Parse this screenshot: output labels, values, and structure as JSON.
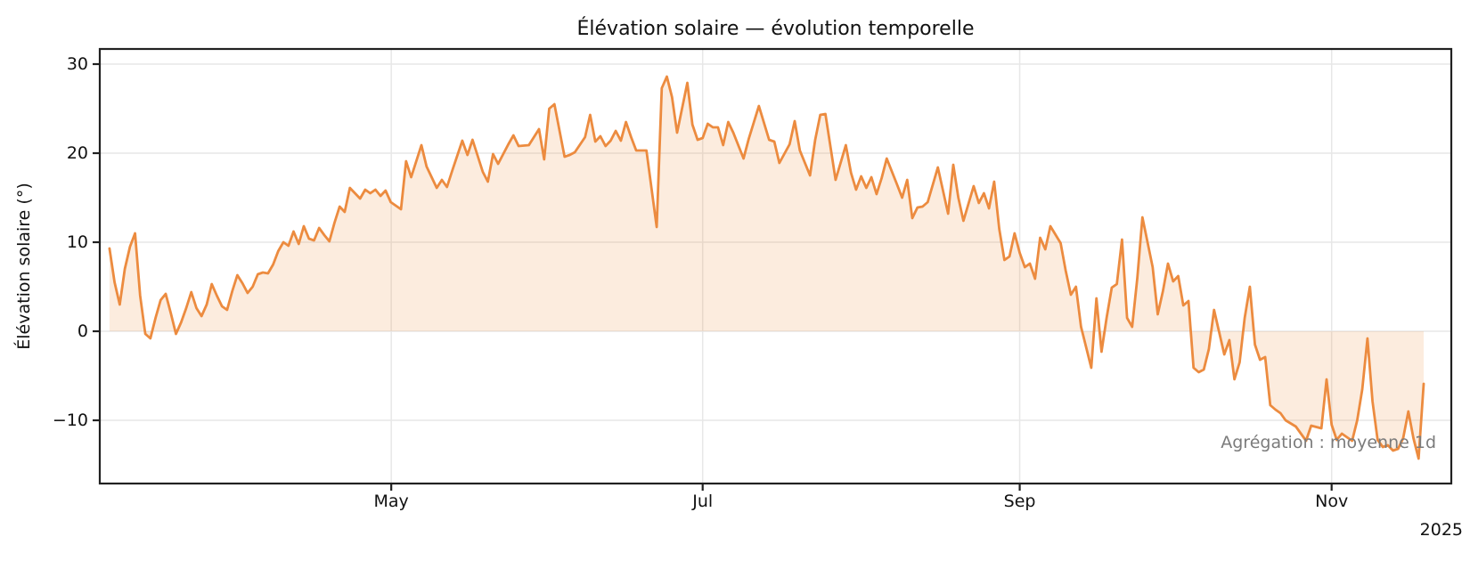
{
  "title": "Élévation solaire — évolution temporelle",
  "ylabel": "Élévation solaire (°)",
  "xlabel": "",
  "annotation": "Agrégation : moyenne 1d",
  "year_label": "2025",
  "colors": {
    "line": "#ec8b3f",
    "fill": "#ee8833",
    "fill_opacity": 0.16,
    "grid": "#e7e7e7",
    "spine": "#212121",
    "text": "#111111",
    "muted_text": "#7b7b7b",
    "background": "#ffffff"
  },
  "chart_data": {
    "type": "line",
    "title": "Élévation solaire — évolution temporelle",
    "xlabel": "",
    "ylabel": "Élévation solaire (°)",
    "grid": true,
    "legend": false,
    "fill_to_zero": true,
    "x_unit": "day index of daily-mean samples (moyenne 1d); ticks mark month starts of 2025",
    "xlim_days": [
      -1.9,
      262.4
    ],
    "ylim": [
      -17.1,
      31.7
    ],
    "y_ticks": [
      -10,
      0,
      10,
      20,
      30
    ],
    "x_ticks": [
      {
        "label": "May",
        "day": 55.1
      },
      {
        "label": "Jul",
        "day": 116.0
      },
      {
        "label": "Sep",
        "day": 178.0
      },
      {
        "label": "Nov",
        "day": 239.0
      }
    ],
    "annotation": "Agrégation : moyenne 1d",
    "year_label": "2025",
    "series": [
      {
        "name": "Élévation solaire (°), moyenne 1d",
        "points": [
          [
            0,
            9.3
          ],
          [
            1,
            5.5
          ],
          [
            2,
            3.0
          ],
          [
            3,
            7.0
          ],
          [
            4,
            9.5
          ],
          [
            5,
            11.0
          ],
          [
            6,
            4.0
          ],
          [
            7,
            -0.3
          ],
          [
            8,
            -0.8
          ],
          [
            9,
            1.5
          ],
          [
            10,
            3.5
          ],
          [
            11,
            4.2
          ],
          [
            12,
            2.0
          ],
          [
            13,
            -0.3
          ],
          [
            14,
            1.0
          ],
          [
            15,
            2.6
          ],
          [
            16,
            4.4
          ],
          [
            17,
            2.6
          ],
          [
            18,
            1.7
          ],
          [
            19,
            3.0
          ],
          [
            20,
            5.3
          ],
          [
            21,
            4.0
          ],
          [
            22,
            2.8
          ],
          [
            23,
            2.4
          ],
          [
            24,
            4.5
          ],
          [
            25,
            6.3
          ],
          [
            26,
            5.4
          ],
          [
            27,
            4.3
          ],
          [
            28,
            5.0
          ],
          [
            29,
            6.4
          ],
          [
            30,
            6.6
          ],
          [
            31,
            6.5
          ],
          [
            32,
            7.5
          ],
          [
            33,
            9.0
          ],
          [
            34,
            10.0
          ],
          [
            35,
            9.6
          ],
          [
            36,
            11.2
          ],
          [
            37,
            9.8
          ],
          [
            38,
            11.8
          ],
          [
            39,
            10.4
          ],
          [
            40,
            10.2
          ],
          [
            41,
            11.6
          ],
          [
            42,
            10.8
          ],
          [
            43,
            10.1
          ],
          [
            44,
            12.2
          ],
          [
            45,
            14.0
          ],
          [
            46,
            13.4
          ],
          [
            47,
            16.1
          ],
          [
            49,
            14.9
          ],
          [
            50,
            15.9
          ],
          [
            51,
            15.5
          ],
          [
            52,
            15.9
          ],
          [
            53,
            15.2
          ],
          [
            54,
            15.8
          ],
          [
            55,
            14.5
          ],
          [
            57,
            13.7
          ],
          [
            58,
            19.1
          ],
          [
            59,
            17.3
          ],
          [
            61,
            20.9
          ],
          [
            62,
            18.5
          ],
          [
            64,
            16.1
          ],
          [
            65,
            17.0
          ],
          [
            66,
            16.2
          ],
          [
            67,
            18.0
          ],
          [
            69,
            21.4
          ],
          [
            70,
            19.8
          ],
          [
            71,
            21.5
          ],
          [
            73,
            17.9
          ],
          [
            74,
            16.8
          ],
          [
            75,
            19.9
          ],
          [
            76,
            18.8
          ],
          [
            78,
            21.0
          ],
          [
            79,
            22.0
          ],
          [
            80,
            20.8
          ],
          [
            82,
            20.9
          ],
          [
            84,
            22.7
          ],
          [
            85,
            19.3
          ],
          [
            86,
            25.0
          ],
          [
            87,
            25.5
          ],
          [
            89,
            19.6
          ],
          [
            90,
            19.8
          ],
          [
            91,
            20.1
          ],
          [
            93,
            21.8
          ],
          [
            94,
            24.3
          ],
          [
            95,
            21.3
          ],
          [
            96,
            21.9
          ],
          [
            97,
            20.8
          ],
          [
            98,
            21.4
          ],
          [
            99,
            22.5
          ],
          [
            100,
            21.4
          ],
          [
            101,
            23.5
          ],
          [
            102,
            21.8
          ],
          [
            103,
            20.3
          ],
          [
            105,
            20.3
          ],
          [
            107,
            11.7
          ],
          [
            108,
            27.3
          ],
          [
            109,
            28.6
          ],
          [
            110,
            26.3
          ],
          [
            111,
            22.3
          ],
          [
            113,
            27.9
          ],
          [
            114,
            23.2
          ],
          [
            115,
            21.5
          ],
          [
            116,
            21.7
          ],
          [
            117,
            23.3
          ],
          [
            118,
            22.9
          ],
          [
            119,
            22.9
          ],
          [
            120,
            20.9
          ],
          [
            121,
            23.5
          ],
          [
            122,
            22.3
          ],
          [
            124,
            19.4
          ],
          [
            125,
            21.6
          ],
          [
            127,
            25.3
          ],
          [
            129,
            21.5
          ],
          [
            130,
            21.3
          ],
          [
            131,
            18.9
          ],
          [
            133,
            21.0
          ],
          [
            134,
            23.6
          ],
          [
            135,
            20.3
          ],
          [
            137,
            17.5
          ],
          [
            138,
            21.5
          ],
          [
            139,
            24.3
          ],
          [
            140,
            24.4
          ],
          [
            142,
            17.0
          ],
          [
            144,
            20.9
          ],
          [
            145,
            17.8
          ],
          [
            146,
            15.9
          ],
          [
            147,
            17.4
          ],
          [
            148,
            16.1
          ],
          [
            149,
            17.3
          ],
          [
            150,
            15.4
          ],
          [
            151,
            17.2
          ],
          [
            152,
            19.4
          ],
          [
            154,
            16.5
          ],
          [
            155,
            15.0
          ],
          [
            156,
            17.0
          ],
          [
            157,
            12.7
          ],
          [
            158,
            13.9
          ],
          [
            159,
            14.0
          ],
          [
            160,
            14.5
          ],
          [
            162,
            18.4
          ],
          [
            164,
            13.2
          ],
          [
            165,
            18.7
          ],
          [
            166,
            15.0
          ],
          [
            167,
            12.4
          ],
          [
            169,
            16.3
          ],
          [
            170,
            14.4
          ],
          [
            171,
            15.5
          ],
          [
            172,
            13.8
          ],
          [
            173,
            16.8
          ],
          [
            174,
            11.5
          ],
          [
            175,
            8.0
          ],
          [
            176,
            8.4
          ],
          [
            177,
            11.0
          ],
          [
            178,
            8.8
          ],
          [
            179,
            7.2
          ],
          [
            180,
            7.6
          ],
          [
            181,
            5.9
          ],
          [
            182,
            10.5
          ],
          [
            183,
            9.2
          ],
          [
            184,
            11.8
          ],
          [
            186,
            9.9
          ],
          [
            187,
            6.8
          ],
          [
            188,
            4.1
          ],
          [
            189,
            5.0
          ],
          [
            190,
            0.5
          ],
          [
            192,
            -4.1
          ],
          [
            193,
            3.7
          ],
          [
            194,
            -2.3
          ],
          [
            195,
            1.5
          ],
          [
            196,
            4.9
          ],
          [
            197,
            5.3
          ],
          [
            198,
            10.3
          ],
          [
            199,
            1.5
          ],
          [
            200,
            0.5
          ],
          [
            201,
            6.0
          ],
          [
            202,
            12.8
          ],
          [
            204,
            7.2
          ],
          [
            205,
            1.9
          ],
          [
            206,
            4.5
          ],
          [
            207,
            7.6
          ],
          [
            208,
            5.6
          ],
          [
            209,
            6.2
          ],
          [
            210,
            2.9
          ],
          [
            211,
            3.4
          ],
          [
            212,
            -4.1
          ],
          [
            213,
            -4.6
          ],
          [
            214,
            -4.3
          ],
          [
            215,
            -2.0
          ],
          [
            216,
            2.4
          ],
          [
            218,
            -2.6
          ],
          [
            219,
            -1.0
          ],
          [
            220,
            -5.4
          ],
          [
            221,
            -3.5
          ],
          [
            222,
            1.5
          ],
          [
            223,
            5.0
          ],
          [
            224,
            -1.5
          ],
          [
            225,
            -3.2
          ],
          [
            226,
            -2.9
          ],
          [
            227,
            -8.3
          ],
          [
            228,
            -8.8
          ],
          [
            229,
            -9.2
          ],
          [
            230,
            -10.0
          ],
          [
            232,
            -10.7
          ],
          [
            234,
            -12.3
          ],
          [
            235,
            -10.6
          ],
          [
            237,
            -10.9
          ],
          [
            238,
            -5.4
          ],
          [
            239,
            -10.5
          ],
          [
            240,
            -12.2
          ],
          [
            241,
            -11.5
          ],
          [
            242,
            -11.9
          ],
          [
            243,
            -12.3
          ],
          [
            244,
            -10.0
          ],
          [
            245,
            -6.5
          ],
          [
            246,
            -0.8
          ],
          [
            247,
            -7.9
          ],
          [
            248,
            -12.2
          ],
          [
            249,
            -13.0
          ],
          [
            250,
            -12.8
          ],
          [
            251,
            -13.4
          ],
          [
            252,
            -13.2
          ],
          [
            253,
            -12.0
          ],
          [
            254,
            -9.0
          ],
          [
            255,
            -12.0
          ],
          [
            256,
            -14.3
          ],
          [
            257,
            -5.9
          ]
        ]
      }
    ]
  }
}
